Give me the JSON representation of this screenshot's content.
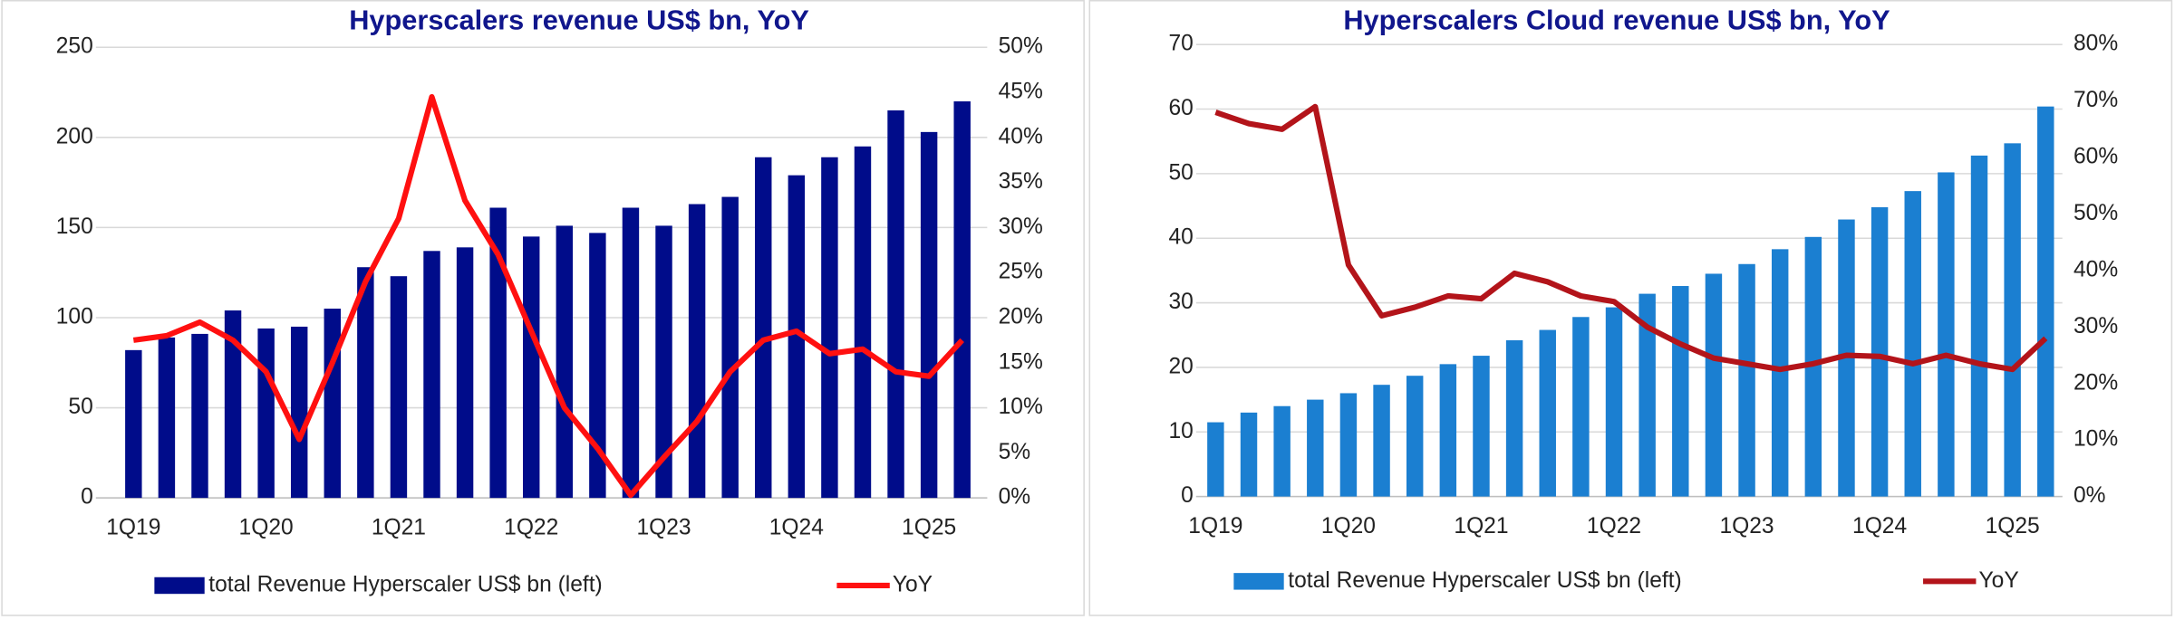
{
  "chart_data": [
    {
      "type": "bar-line",
      "title": "Hyperscalers revenue US$ bn, YoY",
      "categories": [
        "1Q19",
        null,
        null,
        null,
        "1Q20",
        null,
        null,
        null,
        "1Q21",
        null,
        null,
        null,
        "1Q22",
        null,
        null,
        null,
        "1Q23",
        null,
        null,
        null,
        "1Q24",
        null,
        null,
        null,
        "1Q25",
        null
      ],
      "series": [
        {
          "name": "total Revenue Hyperscaler US$ bn (left)",
          "color": "#000c8a",
          "axis": "y",
          "values": [
            82,
            89,
            91,
            104,
            94,
            95,
            105,
            128,
            123,
            137,
            139,
            161,
            145,
            151,
            147,
            161,
            151,
            163,
            167,
            189,
            179,
            189,
            195,
            215,
            203,
            220
          ]
        },
        {
          "name": "YoY",
          "color": "#ff1010",
          "axis": "y2",
          "values": [
            17.5,
            18,
            19.5,
            17.5,
            14,
            6.5,
            15,
            24,
            31,
            44.5,
            33,
            27,
            18.5,
            10,
            5.5,
            0.3,
            4.5,
            8.5,
            14,
            17.5,
            18.5,
            16,
            16.5,
            14,
            13.5,
            17.5
          ]
        }
      ],
      "ylim": [
        0,
        250
      ],
      "yticks": [
        0,
        50,
        100,
        150,
        200,
        250
      ],
      "y2lim": [
        0,
        50
      ],
      "y2ticks": [
        {
          "value": 0,
          "label": "0%"
        },
        {
          "value": 5,
          "label": "5%"
        },
        {
          "value": 10,
          "label": "10%"
        },
        {
          "value": 15,
          "label": "15%"
        },
        {
          "value": 20,
          "label": "20%"
        },
        {
          "value": 25,
          "label": "25%"
        },
        {
          "value": 30,
          "label": "30%"
        },
        {
          "value": 35,
          "label": "35%"
        },
        {
          "value": 40,
          "label": "40%"
        },
        {
          "value": 45,
          "label": "45%"
        },
        {
          "value": 50,
          "label": "50%"
        }
      ],
      "grid": true,
      "legend": "bottom"
    },
    {
      "type": "bar-line",
      "title": "Hyperscalers Cloud revenue US$ bn, YoY",
      "categories": [
        "1Q19",
        null,
        null,
        null,
        "1Q20",
        null,
        null,
        null,
        "1Q21",
        null,
        null,
        null,
        "1Q22",
        null,
        null,
        null,
        "1Q23",
        null,
        null,
        null,
        "1Q24",
        null,
        null,
        null,
        "1Q25",
        null
      ],
      "series": [
        {
          "name": "total Revenue Hyperscaler US$ bn (left)",
          "color": "#1b7fd1",
          "axis": "y",
          "values": [
            11.5,
            13,
            14,
            15,
            16,
            17.3,
            18.7,
            20.5,
            21.8,
            24.2,
            25.8,
            27.8,
            29.3,
            31.4,
            32.6,
            34.5,
            36,
            38.3,
            40.2,
            42.9,
            44.8,
            47.3,
            50.2,
            52.8,
            54.7,
            60.4
          ]
        },
        {
          "name": "YoY",
          "color": "#b3141a",
          "axis": "y2",
          "values": [
            68,
            66,
            65,
            69,
            41,
            32,
            33.5,
            35.5,
            35,
            39.5,
            38,
            35.5,
            34.5,
            30,
            27,
            24.5,
            23.5,
            22.5,
            23.5,
            25,
            24.8,
            23.5,
            25,
            23.5,
            22.5,
            28
          ]
        }
      ],
      "ylim": [
        0,
        70
      ],
      "yticks": [
        0,
        10,
        20,
        30,
        40,
        50,
        60,
        70
      ],
      "y2lim": [
        0,
        80
      ],
      "y2ticks": [
        {
          "value": 0,
          "label": "0%"
        },
        {
          "value": 10,
          "label": "10%"
        },
        {
          "value": 20,
          "label": "20%"
        },
        {
          "value": 30,
          "label": "30%"
        },
        {
          "value": 40,
          "label": "40%"
        },
        {
          "value": 50,
          "label": "50%"
        },
        {
          "value": 60,
          "label": "60%"
        },
        {
          "value": 70,
          "label": "70%"
        },
        {
          "value": 80,
          "label": "80%"
        }
      ],
      "grid": true,
      "legend": "bottom"
    }
  ]
}
